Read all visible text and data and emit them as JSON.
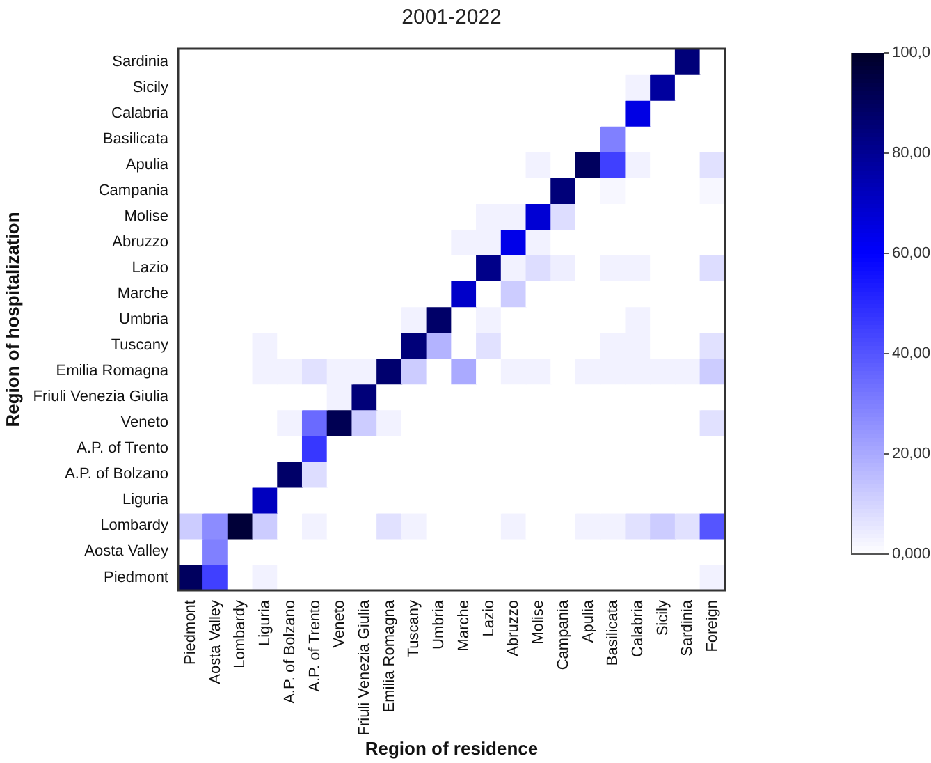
{
  "chart_data": {
    "type": "heatmap",
    "title": "2001-2022",
    "xlabel": "Region of residence",
    "ylabel": "Region of hospitalization",
    "categories": [
      "Piedmont",
      "Aosta Valley",
      "Lombardy",
      "Liguria",
      "A.P. of Bolzano",
      "A.P. of Trento",
      "Veneto",
      "Friuli Venezia Giulia",
      "Emilia Romagna",
      "Tuscany",
      "Umbria",
      "Marche",
      "Lazio",
      "Abruzzo",
      "Molise",
      "Campania",
      "Apulia",
      "Basilicata",
      "Calabria",
      "Sicily",
      "Sardinia",
      "Foreign"
    ],
    "y_categories": [
      "Sardinia",
      "Sicily",
      "Calabria",
      "Basilicata",
      "Apulia",
      "Campania",
      "Molise",
      "Abruzzo",
      "Lazio",
      "Marche",
      "Umbria",
      "Tuscany",
      "Emilia Romagna",
      "Friuli Venezia Giulia",
      "Veneto",
      "A.P. of Trento",
      "A.P. of Bolzano",
      "Liguria",
      "Lombardy",
      "Aosta Valley",
      "Piedmont"
    ],
    "cells": [
      [
        0,
        0,
        0,
        0,
        0,
        0,
        0,
        0,
        0,
        0,
        0,
        0,
        0,
        0,
        0,
        0,
        0,
        0,
        0,
        0,
        85,
        0
      ],
      [
        0,
        0,
        0,
        0,
        0,
        0,
        0,
        0,
        0,
        0,
        0,
        0,
        0,
        0,
        0,
        0,
        0,
        0,
        3,
        78,
        0,
        0
      ],
      [
        0,
        0,
        0,
        0,
        0,
        0,
        0,
        0,
        0,
        0,
        0,
        0,
        0,
        0,
        0,
        0,
        0,
        0,
        65,
        0,
        0,
        0
      ],
      [
        0,
        0,
        0,
        0,
        0,
        0,
        0,
        0,
        0,
        0,
        0,
        0,
        0,
        0,
        0,
        0,
        0,
        30,
        0,
        0,
        0,
        0
      ],
      [
        0,
        0,
        0,
        0,
        0,
        0,
        0,
        0,
        0,
        0,
        0,
        0,
        0,
        0,
        3,
        0,
        90,
        45,
        3,
        0,
        0,
        7
      ],
      [
        0,
        0,
        0,
        0,
        0,
        0,
        0,
        0,
        0,
        0,
        0,
        0,
        0,
        0,
        0,
        85,
        0,
        2,
        0,
        0,
        0,
        2
      ],
      [
        0,
        0,
        0,
        0,
        0,
        0,
        0,
        0,
        0,
        0,
        0,
        0,
        3,
        3,
        68,
        8,
        0,
        0,
        0,
        0,
        0,
        0
      ],
      [
        0,
        0,
        0,
        0,
        0,
        0,
        0,
        0,
        0,
        0,
        0,
        3,
        3,
        64,
        3,
        0,
        0,
        0,
        0,
        0,
        0,
        0
      ],
      [
        0,
        0,
        0,
        0,
        0,
        0,
        0,
        0,
        0,
        0,
        0,
        0,
        82,
        3,
        8,
        4,
        0,
        3,
        3,
        0,
        0,
        8
      ],
      [
        0,
        0,
        0,
        0,
        0,
        0,
        0,
        0,
        0,
        0,
        0,
        70,
        0,
        12,
        0,
        0,
        0,
        0,
        0,
        0,
        0,
        0
      ],
      [
        0,
        0,
        0,
        0,
        0,
        0,
        0,
        0,
        0,
        3,
        88,
        0,
        3,
        0,
        0,
        0,
        0,
        0,
        3,
        0,
        0,
        0
      ],
      [
        0,
        0,
        0,
        3,
        0,
        0,
        0,
        0,
        0,
        85,
        18,
        0,
        7,
        0,
        0,
        0,
        0,
        3,
        3,
        0,
        0,
        7
      ],
      [
        0,
        0,
        0,
        3,
        3,
        7,
        3,
        3,
        87,
        12,
        0,
        20,
        0,
        3,
        3,
        0,
        3,
        3,
        3,
        3,
        3,
        12
      ],
      [
        0,
        0,
        0,
        0,
        0,
        0,
        3,
        85,
        0,
        0,
        0,
        0,
        0,
        0,
        0,
        0,
        0,
        0,
        0,
        0,
        0,
        0
      ],
      [
        0,
        0,
        0,
        0,
        3,
        35,
        92,
        12,
        3,
        0,
        0,
        0,
        0,
        0,
        0,
        0,
        0,
        0,
        0,
        0,
        0,
        7
      ],
      [
        0,
        0,
        0,
        0,
        0,
        47,
        0,
        0,
        0,
        0,
        0,
        0,
        0,
        0,
        0,
        0,
        0,
        0,
        0,
        0,
        0,
        0
      ],
      [
        0,
        0,
        0,
        0,
        88,
        8,
        0,
        0,
        0,
        0,
        0,
        0,
        0,
        0,
        0,
        0,
        0,
        0,
        0,
        0,
        0,
        0
      ],
      [
        0,
        0,
        0,
        72,
        0,
        0,
        0,
        0,
        0,
        0,
        0,
        0,
        0,
        0,
        0,
        0,
        0,
        0,
        0,
        0,
        0,
        0
      ],
      [
        12,
        27,
        97,
        12,
        0,
        3,
        0,
        0,
        7,
        3,
        0,
        0,
        0,
        3,
        0,
        0,
        3,
        3,
        7,
        12,
        7,
        40
      ],
      [
        0,
        30,
        0,
        0,
        0,
        0,
        0,
        0,
        0,
        0,
        0,
        0,
        0,
        0,
        0,
        0,
        0,
        0,
        0,
        0,
        0,
        0
      ],
      [
        90,
        45,
        0,
        3,
        0,
        0,
        0,
        0,
        0,
        0,
        0,
        0,
        0,
        0,
        0,
        0,
        0,
        0,
        0,
        0,
        0,
        3
      ]
    ],
    "clim": [
      0,
      100
    ],
    "cticks": [
      {
        "value": 0,
        "label": "0,000"
      },
      {
        "value": 20,
        "label": "20,00"
      },
      {
        "value": 40,
        "label": "40,00"
      },
      {
        "value": 60,
        "label": "60,00"
      },
      {
        "value": 80,
        "label": "80,00"
      },
      {
        "value": 100,
        "label": "100,0"
      }
    ]
  }
}
